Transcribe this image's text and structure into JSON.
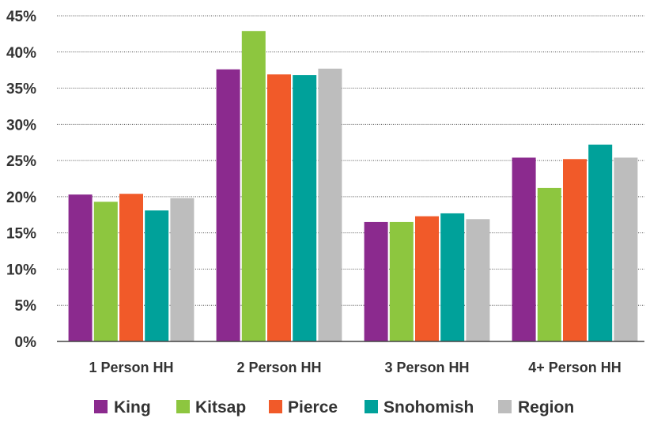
{
  "chart_data": {
    "type": "bar",
    "categories": [
      "1 Person HH",
      "2 Person HH",
      "3 Person HH",
      "4+ Person HH"
    ],
    "series": [
      {
        "name": "King",
        "color": "#8B2A8E",
        "values": [
          20.3,
          37.6,
          16.5,
          25.4
        ]
      },
      {
        "name": "Kitsap",
        "color": "#8DC63F",
        "values": [
          19.3,
          42.9,
          16.5,
          21.2
        ]
      },
      {
        "name": "Pierce",
        "color": "#F15A29",
        "values": [
          20.4,
          36.9,
          17.3,
          25.2
        ]
      },
      {
        "name": "Snohomish",
        "color": "#00A19A",
        "values": [
          18.1,
          36.8,
          17.7,
          27.2
        ]
      },
      {
        "name": "Region",
        "color": "#BDBDBD",
        "values": [
          19.8,
          37.7,
          16.9,
          25.4
        ]
      }
    ],
    "y_ticks": [
      "0%",
      "5%",
      "10%",
      "15%",
      "20%",
      "25%",
      "30%",
      "35%",
      "40%",
      "45%"
    ],
    "ylim": [
      0,
      45
    ],
    "y_unit": "%",
    "grid": true,
    "legend_position": "bottom"
  }
}
